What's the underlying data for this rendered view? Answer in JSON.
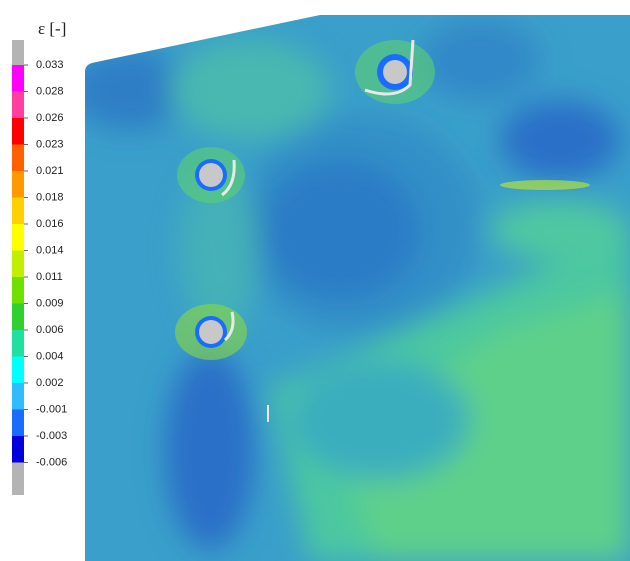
{
  "chart_data": {
    "type": "contour",
    "colorbar_title": "ε [-]",
    "levels": [
      0.033,
      0.028,
      0.026,
      0.023,
      0.021,
      0.018,
      0.016,
      0.014,
      0.011,
      0.009,
      0.006,
      0.004,
      0.002,
      -0.001,
      -0.003,
      -0.006
    ],
    "colors": [
      "#ff00ff",
      "#ff3fa0",
      "#ff0000",
      "#ff6000",
      "#ff9900",
      "#ffd000",
      "#ffff00",
      "#c0f000",
      "#70e000",
      "#30d030",
      "#20e0a0",
      "#00ffff",
      "#33bbff",
      "#1a6cff",
      "#0000dd"
    ],
    "over_color": "#b4b4b4",
    "under_color": "#b4b4b4"
  }
}
